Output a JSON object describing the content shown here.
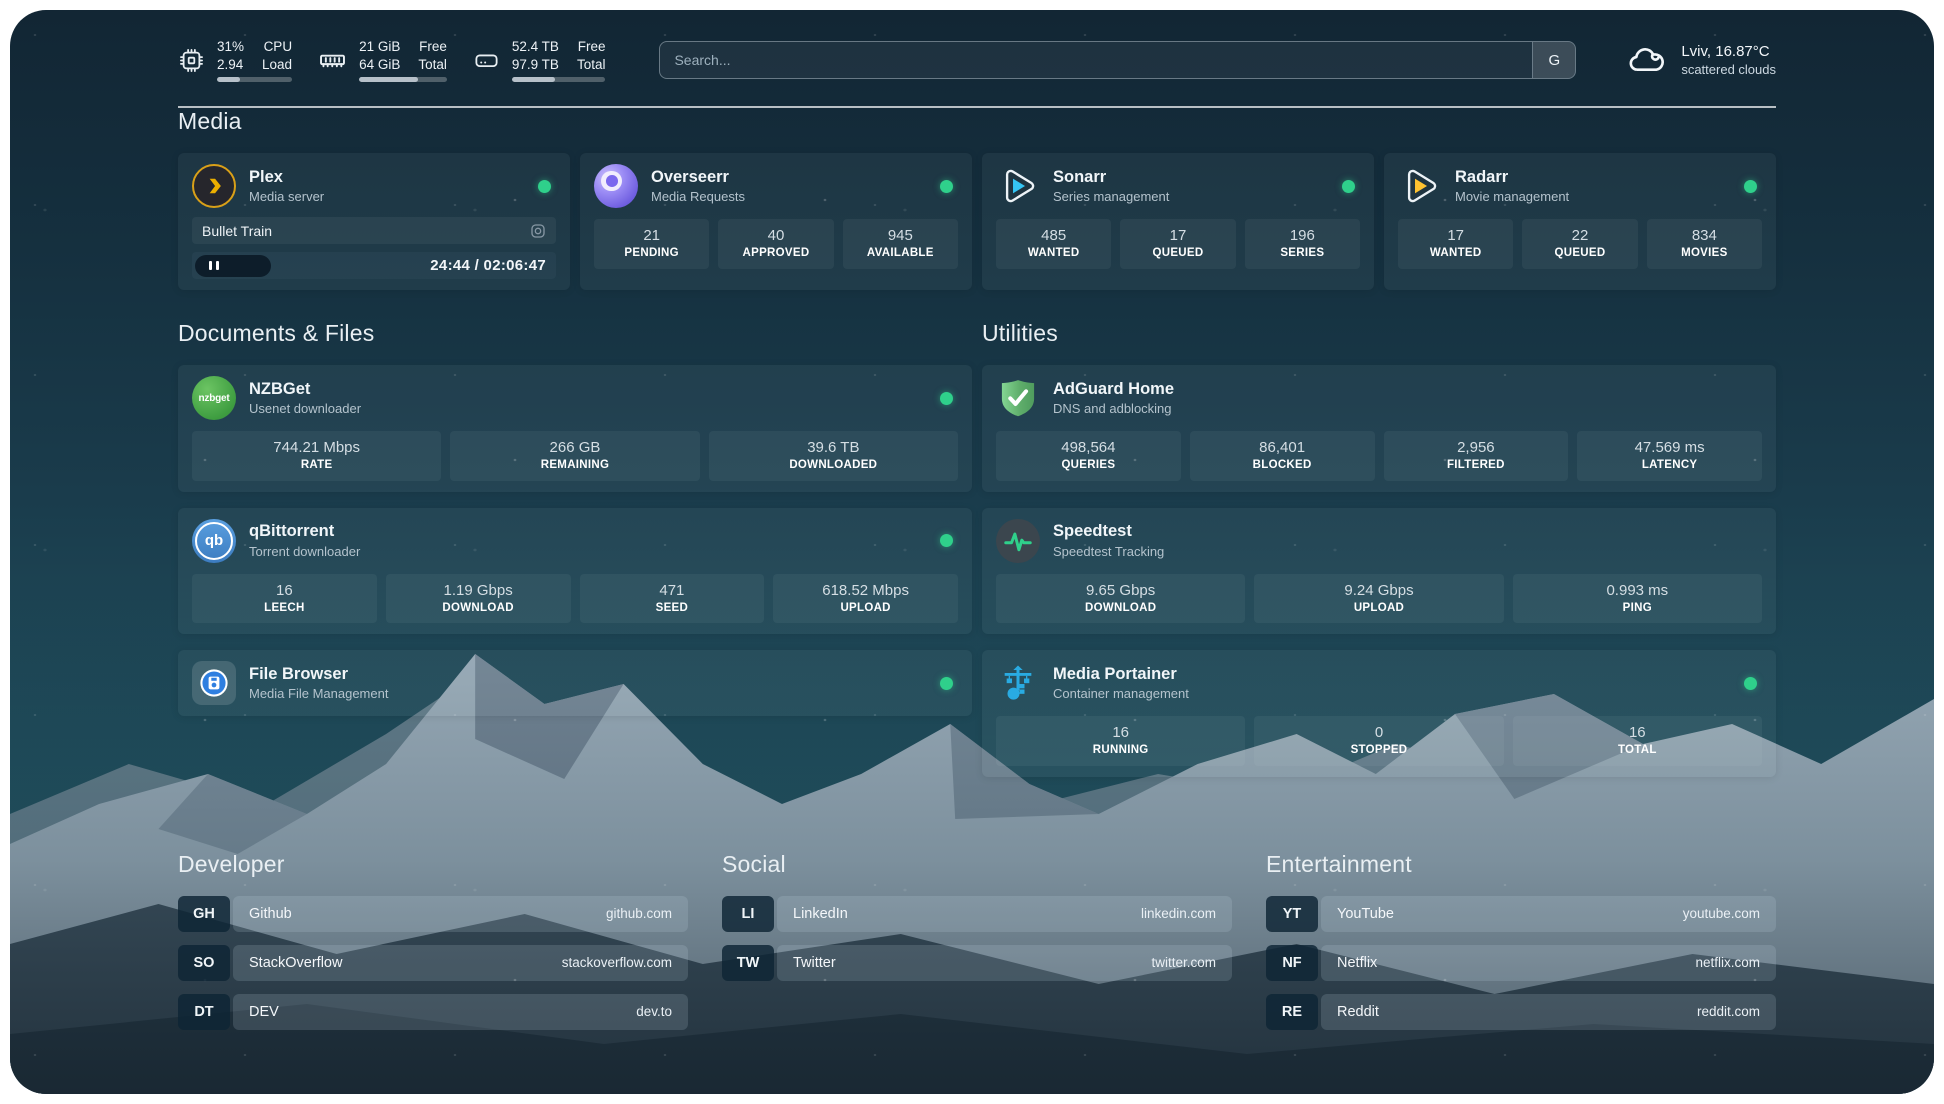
{
  "topbar": {
    "cpu": {
      "percent": "31%",
      "load": "2.94",
      "label_top": "CPU",
      "label_bottom": "Load",
      "progress": 31
    },
    "memory": {
      "free": "21 GiB",
      "total": "64 GiB",
      "label_top": "Free",
      "label_bottom": "Total",
      "progress": 67
    },
    "disk": {
      "free": "52.4 TB",
      "total": "97.9 TB",
      "label_top": "Free",
      "label_bottom": "Total",
      "progress": 46
    },
    "search": {
      "placeholder": "Search...",
      "button_label": "G"
    },
    "weather": {
      "summary": "Lviv, 16.87°C",
      "condition": "scattered clouds"
    }
  },
  "sections": {
    "media": "Media",
    "documents": "Documents & Files",
    "utilities": "Utilities",
    "developer": "Developer",
    "social": "Social",
    "entertainment": "Entertainment"
  },
  "services": {
    "plex": {
      "name": "Plex",
      "desc": "Media server",
      "now_playing": "Bullet Train",
      "time": "24:44 / 02:06:47"
    },
    "overseerr": {
      "name": "Overseerr",
      "desc": "Media Requests",
      "stats": [
        {
          "value": "21",
          "label": "PENDING"
        },
        {
          "value": "40",
          "label": "APPROVED"
        },
        {
          "value": "945",
          "label": "AVAILABLE"
        }
      ]
    },
    "sonarr": {
      "name": "Sonarr",
      "desc": "Series management",
      "stats": [
        {
          "value": "485",
          "label": "WANTED"
        },
        {
          "value": "17",
          "label": "QUEUED"
        },
        {
          "value": "196",
          "label": "SERIES"
        }
      ]
    },
    "radarr": {
      "name": "Radarr",
      "desc": "Movie management",
      "stats": [
        {
          "value": "17",
          "label": "WANTED"
        },
        {
          "value": "22",
          "label": "QUEUED"
        },
        {
          "value": "834",
          "label": "MOVIES"
        }
      ]
    },
    "nzbget": {
      "name": "NZBGet",
      "desc": "Usenet downloader",
      "icon_text": "nzbget",
      "stats": [
        {
          "value": "744.21 Mbps",
          "label": "RATE"
        },
        {
          "value": "266 GB",
          "label": "REMAINING"
        },
        {
          "value": "39.6 TB",
          "label": "DOWNLOADED"
        }
      ]
    },
    "qbittorrent": {
      "name": "qBittorrent",
      "desc": "Torrent downloader",
      "icon_text": "qb",
      "stats": [
        {
          "value": "16",
          "label": "LEECH"
        },
        {
          "value": "1.19 Gbps",
          "label": "DOWNLOAD"
        },
        {
          "value": "471",
          "label": "SEED"
        },
        {
          "value": "618.52 Mbps",
          "label": "UPLOAD"
        }
      ]
    },
    "filebrowser": {
      "name": "File Browser",
      "desc": "Media File Management"
    },
    "adguard": {
      "name": "AdGuard Home",
      "desc": "DNS and adblocking",
      "stats": [
        {
          "value": "498,564",
          "label": "QUERIES"
        },
        {
          "value": "86,401",
          "label": "BLOCKED"
        },
        {
          "value": "2,956",
          "label": "FILTERED"
        },
        {
          "value": "47.569 ms",
          "label": "LATENCY"
        }
      ]
    },
    "speedtest": {
      "name": "Speedtest",
      "desc": "Speedtest Tracking",
      "stats": [
        {
          "value": "9.65 Gbps",
          "label": "DOWNLOAD"
        },
        {
          "value": "9.24 Gbps",
          "label": "UPLOAD"
        },
        {
          "value": "0.993 ms",
          "label": "PING"
        }
      ]
    },
    "portainer": {
      "name": "Media Portainer",
      "desc": "Container management",
      "stats": [
        {
          "value": "16",
          "label": "RUNNING"
        },
        {
          "value": "0",
          "label": "STOPPED"
        },
        {
          "value": "16",
          "label": "TOTAL"
        }
      ]
    }
  },
  "bookmarks": {
    "developer": [
      {
        "abbr": "GH",
        "name": "Github",
        "url": "github.com"
      },
      {
        "abbr": "SO",
        "name": "StackOverflow",
        "url": "stackoverflow.com"
      },
      {
        "abbr": "DT",
        "name": "DEV",
        "url": "dev.to"
      }
    ],
    "social": [
      {
        "abbr": "LI",
        "name": "LinkedIn",
        "url": "linkedin.com"
      },
      {
        "abbr": "TW",
        "name": "Twitter",
        "url": "twitter.com"
      }
    ],
    "entertainment": [
      {
        "abbr": "YT",
        "name": "YouTube",
        "url": "youtube.com"
      },
      {
        "abbr": "NF",
        "name": "Netflix",
        "url": "netflix.com"
      },
      {
        "abbr": "RE",
        "name": "Reddit",
        "url": "reddit.com"
      }
    ]
  },
  "colors": {
    "status_online": "#2fd08b",
    "plex_amber": "#ebaf00",
    "sonarr_blue": "#35c5f4",
    "radarr_amber": "#ffc230",
    "nzbget_green": "#54b354",
    "qbittorrent_blue": "#4a90d8",
    "adguard_green": "#68bc71",
    "speedtest_green": "#2fd08b",
    "portainer_blue": "#29abe2",
    "overseerr_purple": "#7c6cf0",
    "filebrowser_blue": "#2f7fe0"
  }
}
